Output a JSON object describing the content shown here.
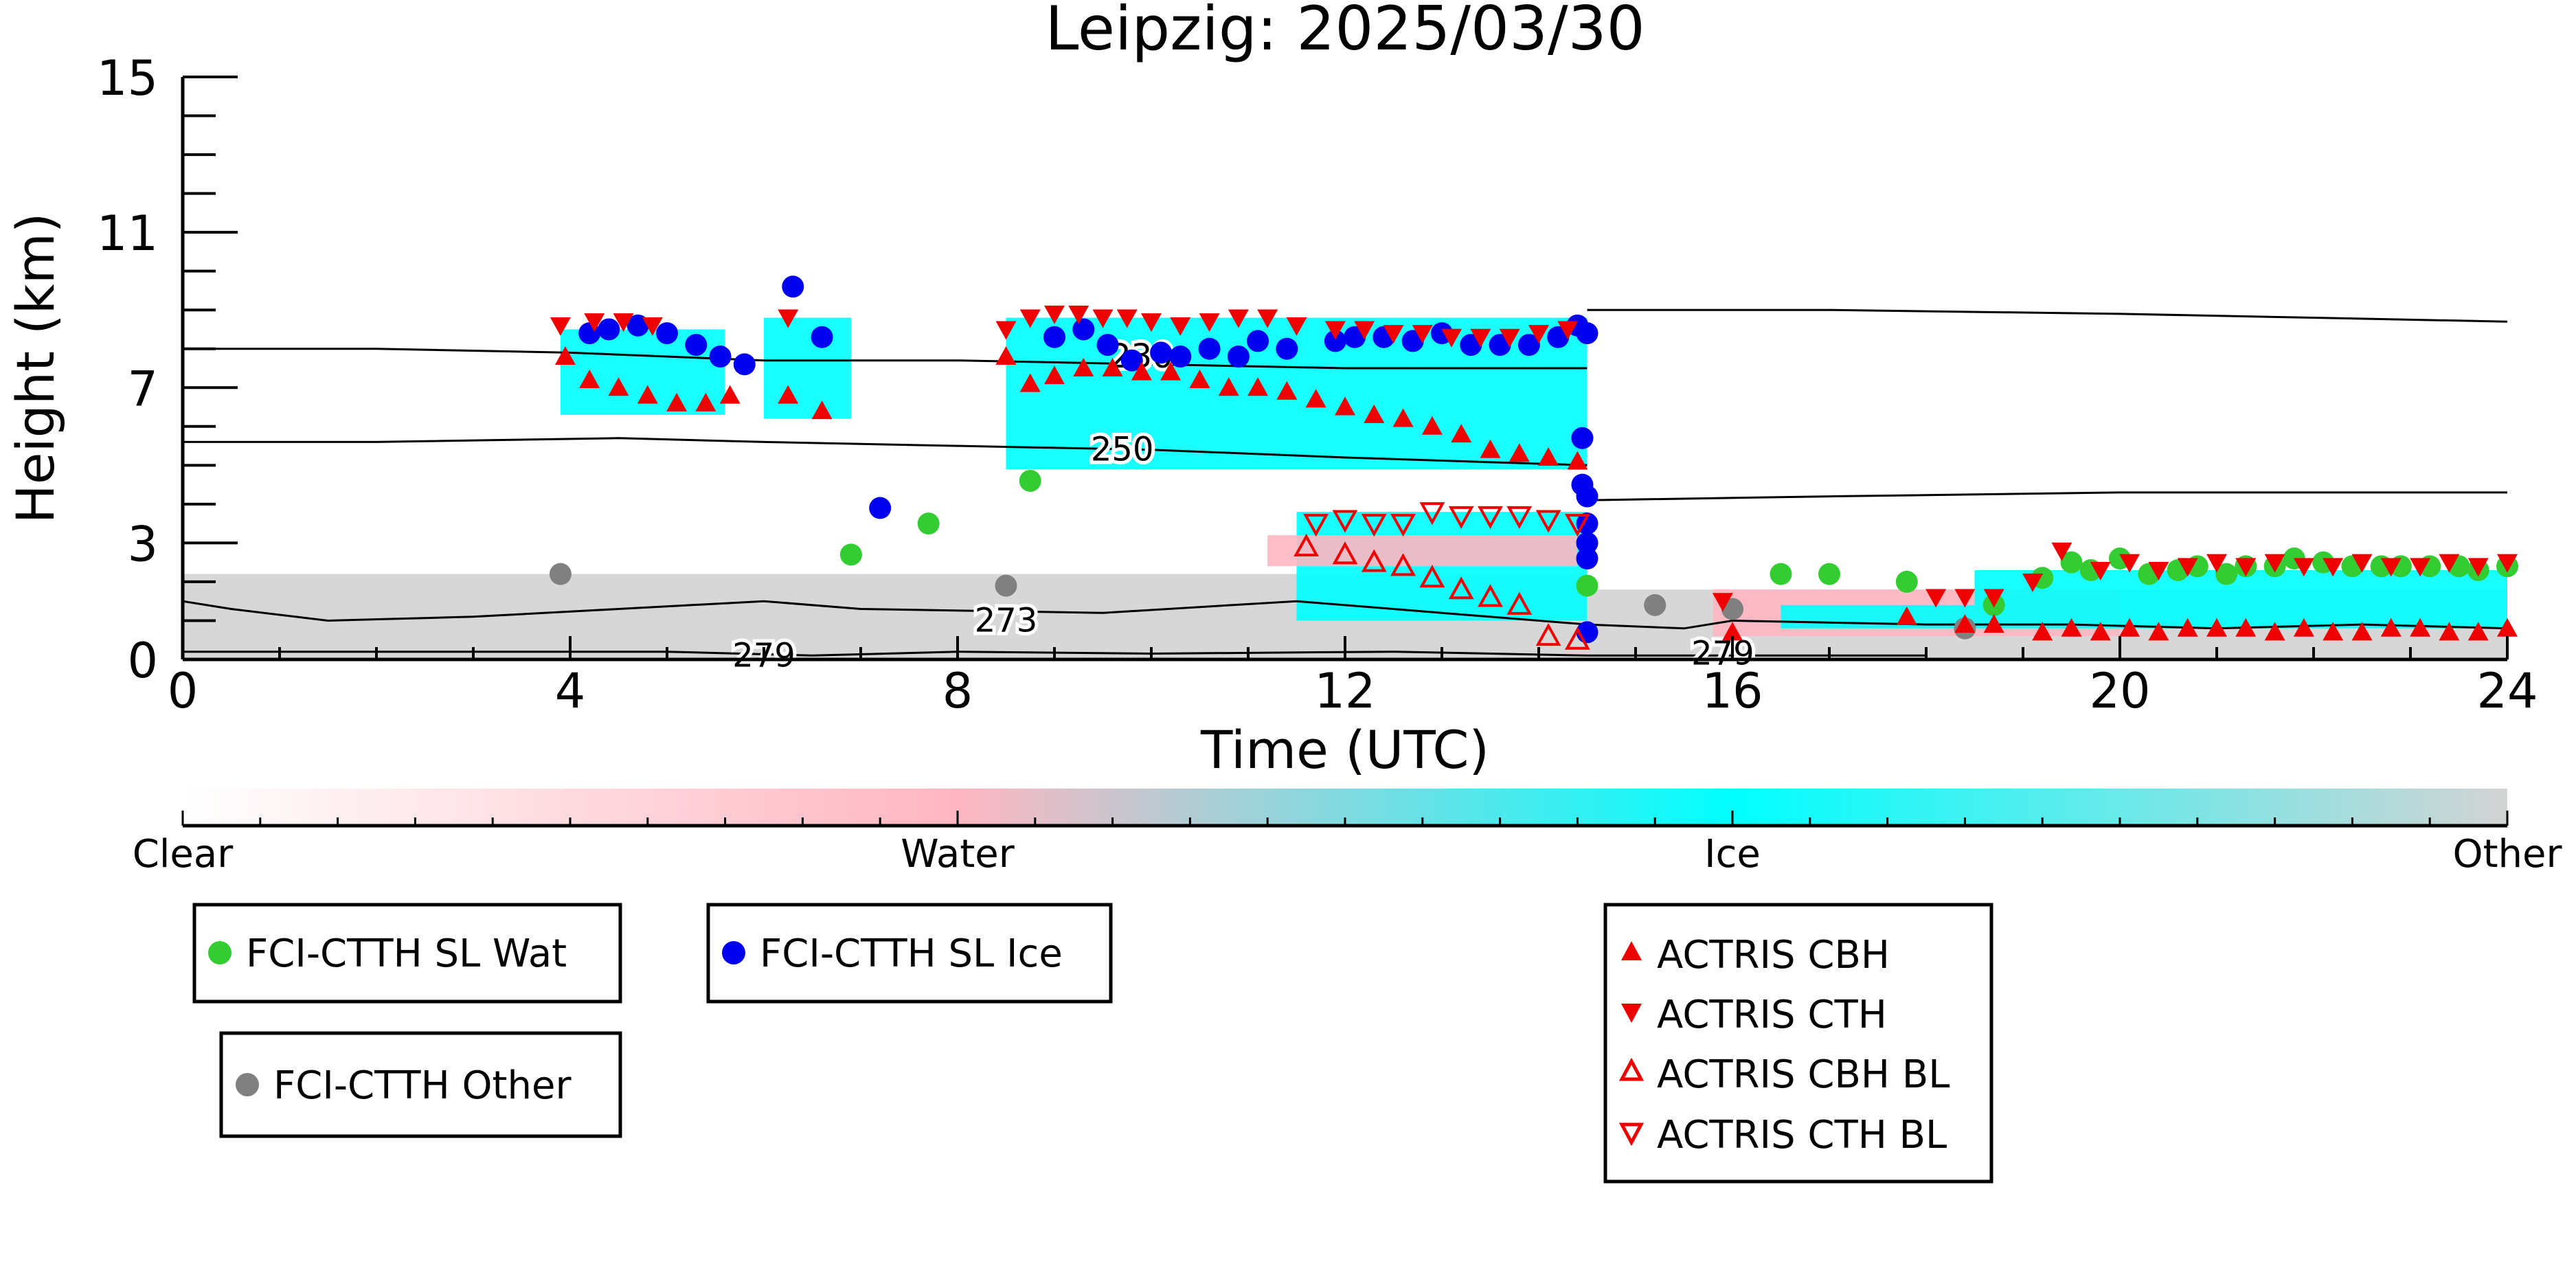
{
  "chart_data": {
    "type": "scatter",
    "title": "Leipzig: 2025/03/30",
    "xlabel": "Time (UTC)",
    "ylabel": "Height (km)",
    "xlim": [
      0,
      24
    ],
    "ylim": [
      0,
      15
    ],
    "x_ticks": [
      0,
      4,
      8,
      12,
      16,
      20,
      24
    ],
    "x_tick_labels": [
      "0",
      "4",
      "8",
      "12",
      "16",
      "20",
      "24"
    ],
    "y_ticks": [
      0,
      3,
      7,
      11,
      15
    ],
    "y_tick_labels": [
      "0",
      "3",
      "7",
      "11",
      "15"
    ],
    "grid": false,
    "colorbar": {
      "labels": [
        "Clear",
        "Water",
        "Ice",
        "Other"
      ],
      "colors": [
        "#ffffff",
        "#ffb6c1",
        "#00ffff",
        "#d3d3d3"
      ]
    },
    "contours": [
      {
        "label": "230",
        "label_at": [
          9.9,
          7.8
        ],
        "points": [
          [
            0,
            8.0
          ],
          [
            2,
            8.0
          ],
          [
            4,
            7.9
          ],
          [
            6,
            7.7
          ],
          [
            8,
            7.7
          ],
          [
            10,
            7.6
          ],
          [
            12,
            7.5
          ],
          [
            14.5,
            7.5
          ]
        ]
      },
      {
        "label": "250",
        "label_at": [
          9.7,
          5.4
        ],
        "points": [
          [
            0,
            5.6
          ],
          [
            2,
            5.6
          ],
          [
            4.5,
            5.7
          ],
          [
            6,
            5.6
          ],
          [
            8,
            5.5
          ],
          [
            10,
            5.4
          ],
          [
            12,
            5.2
          ],
          [
            14.5,
            5.0
          ]
        ]
      },
      {
        "label": "273",
        "label_at": [
          8.5,
          1.0
        ],
        "points": [
          [
            0,
            1.5
          ],
          [
            0.5,
            1.3
          ],
          [
            1.5,
            1.0
          ],
          [
            3,
            1.1
          ],
          [
            4.5,
            1.3
          ],
          [
            6,
            1.5
          ],
          [
            7,
            1.3
          ],
          [
            9.5,
            1.2
          ],
          [
            11.5,
            1.5
          ],
          [
            13,
            1.2
          ],
          [
            14.5,
            0.9
          ]
        ]
      },
      {
        "label": "279",
        "label_at": [
          6.0,
          0.1
        ],
        "points": [
          [
            0,
            0.2
          ],
          [
            3,
            0.2
          ],
          [
            5,
            0.2
          ],
          [
            6.5,
            0.1
          ],
          [
            8,
            0.2
          ],
          [
            10,
            0.15
          ],
          [
            12.5,
            0.2
          ],
          [
            14.5,
            0.1
          ]
        ]
      },
      {
        "label": "",
        "label_at": null,
        "points": [
          [
            14.5,
            9.0
          ],
          [
            17,
            9.0
          ],
          [
            20,
            8.9
          ],
          [
            22,
            8.8
          ],
          [
            24,
            8.7
          ]
        ]
      },
      {
        "label": "",
        "label_at": null,
        "points": [
          [
            14.5,
            4.1
          ],
          [
            17,
            4.2
          ],
          [
            20,
            4.3
          ],
          [
            22,
            4.3
          ],
          [
            24,
            4.3
          ]
        ]
      },
      {
        "label": "",
        "label_at": null,
        "points": [
          [
            14.5,
            0.9
          ],
          [
            15.5,
            0.8
          ],
          [
            16,
            1.0
          ],
          [
            18,
            0.9
          ],
          [
            19.5,
            0.9
          ],
          [
            21,
            0.8
          ],
          [
            22.5,
            0.9
          ],
          [
            24,
            0.8
          ]
        ]
      },
      {
        "label": "279",
        "label_at": [
          15.9,
          0.15
        ],
        "points": [
          [
            14.5,
            0.1
          ],
          [
            18,
            0.1
          ]
        ]
      }
    ],
    "regions": [
      {
        "class": "Other",
        "x0": 0,
        "x1": 14.5,
        "y0": 0,
        "y1": 2.2
      },
      {
        "class": "Ice",
        "x0": 3.9,
        "x1": 5.6,
        "y0": 6.3,
        "y1": 8.5
      },
      {
        "class": "Ice",
        "x0": 6.0,
        "x1": 6.9,
        "y0": 6.2,
        "y1": 8.8
      },
      {
        "class": "Ice",
        "x0": 8.5,
        "x1": 14.5,
        "y0": 4.9,
        "y1": 8.8
      },
      {
        "class": "Ice",
        "x0": 11.5,
        "x1": 14.5,
        "y0": 1.0,
        "y1": 3.8
      },
      {
        "class": "Water",
        "x0": 11.2,
        "x1": 14.4,
        "y0": 2.4,
        "y1": 3.2
      },
      {
        "class": "Other",
        "x0": 14.5,
        "x1": 24,
        "y0": 0,
        "y1": 1.8
      },
      {
        "class": "Water",
        "x0": 15.8,
        "x1": 20.0,
        "y0": 0.6,
        "y1": 1.8
      },
      {
        "class": "Ice",
        "x0": 18.5,
        "x1": 24,
        "y0": 0.8,
        "y1": 2.3
      },
      {
        "class": "Ice",
        "x0": 16.5,
        "x1": 18.5,
        "y0": 0.8,
        "y1": 1.4
      }
    ],
    "series": [
      {
        "name": "FCI-CTTH SL Wat",
        "marker": "circle",
        "color": "#33cc33",
        "x": [
          6.9,
          7.7,
          8.75,
          14.5,
          16.5,
          17.0,
          17.8,
          18.7,
          19.2,
          19.5,
          19.7,
          20.0,
          20.3,
          20.6,
          20.8,
          21.1,
          21.3,
          21.6,
          21.8,
          22.1,
          22.4,
          22.7,
          22.9,
          23.2,
          23.5,
          23.7,
          24.0
        ],
        "y": [
          2.7,
          3.5,
          4.6,
          1.9,
          2.2,
          2.2,
          2.0,
          1.4,
          2.1,
          2.5,
          2.3,
          2.6,
          2.2,
          2.3,
          2.4,
          2.2,
          2.4,
          2.4,
          2.6,
          2.5,
          2.4,
          2.4,
          2.4,
          2.4,
          2.4,
          2.3,
          2.4
        ]
      },
      {
        "name": "FCI-CTTH SL Ice",
        "marker": "circle",
        "color": "#0000ee",
        "x": [
          4.2,
          4.4,
          4.7,
          5.0,
          5.3,
          5.55,
          5.8,
          6.3,
          6.6,
          7.2,
          9.0,
          9.3,
          9.55,
          9.8,
          10.1,
          10.3,
          10.6,
          10.9,
          11.1,
          11.4,
          11.9,
          12.1,
          12.4,
          12.7,
          13.0,
          13.3,
          13.6,
          13.9,
          14.2,
          14.4,
          14.45,
          14.45,
          14.5,
          14.5,
          14.5,
          14.5
        ],
        "y": [
          8.4,
          8.5,
          8.6,
          8.4,
          8.1,
          7.8,
          7.6,
          9.6,
          8.3,
          3.9,
          8.3,
          8.5,
          8.1,
          7.7,
          7.9,
          7.8,
          8.0,
          7.8,
          8.2,
          8.0,
          8.2,
          8.3,
          8.3,
          8.2,
          8.4,
          8.1,
          8.1,
          8.1,
          8.3,
          8.6,
          5.7,
          4.5,
          3.5,
          3.0,
          2.6,
          0.7
        ],
        "x_extra": [
          14.5,
          14.5
        ],
        "y_extra": [
          4.2,
          8.4
        ]
      },
      {
        "name": "FCI-CTTH Other",
        "marker": "circle",
        "color": "#808080",
        "x": [
          3.9,
          8.5,
          15.2,
          16.0,
          18.4
        ],
        "y": [
          2.2,
          1.9,
          1.4,
          1.3,
          0.8
        ]
      },
      {
        "name": "ACTRIS CBH",
        "marker": "triangle-up",
        "color": "#ee0000",
        "filled": true,
        "x": [
          3.95,
          4.2,
          4.5,
          4.8,
          5.1,
          5.4,
          5.65,
          6.25,
          6.6,
          8.5,
          8.75,
          9.0,
          9.3,
          9.6,
          9.9,
          10.2,
          10.5,
          10.8,
          11.1,
          11.4,
          11.7,
          12.0,
          12.3,
          12.6,
          12.9,
          13.2,
          13.5,
          13.8,
          14.1,
          14.4,
          16.0,
          17.8,
          18.4,
          18.7,
          19.2,
          19.5,
          19.8,
          20.1,
          20.4,
          20.7,
          21.0,
          21.3,
          21.6,
          21.9,
          22.2,
          22.5,
          22.8,
          23.1,
          23.4,
          23.7,
          24.0
        ],
        "y": [
          7.8,
          7.2,
          7.0,
          6.8,
          6.6,
          6.6,
          6.8,
          6.8,
          6.4,
          7.8,
          7.1,
          7.3,
          7.5,
          7.5,
          7.4,
          7.4,
          7.2,
          7.0,
          7.0,
          6.9,
          6.7,
          6.5,
          6.3,
          6.2,
          6.0,
          5.8,
          5.4,
          5.3,
          5.2,
          5.1,
          0.7,
          1.1,
          0.9,
          0.9,
          0.7,
          0.8,
          0.7,
          0.8,
          0.7,
          0.8,
          0.8,
          0.8,
          0.7,
          0.8,
          0.7,
          0.7,
          0.8,
          0.8,
          0.7,
          0.7,
          0.8
        ]
      },
      {
        "name": "ACTRIS CTH",
        "marker": "triangle-down",
        "color": "#ee0000",
        "filled": true,
        "x": [
          3.9,
          4.25,
          4.55,
          4.85,
          6.25,
          8.5,
          8.75,
          9.0,
          9.25,
          9.5,
          9.75,
          10.0,
          10.3,
          10.6,
          10.9,
          11.2,
          11.5,
          11.9,
          12.2,
          12.5,
          12.8,
          13.1,
          13.4,
          13.7,
          14.0,
          14.3,
          15.9,
          18.1,
          18.4,
          18.7,
          19.1,
          19.4,
          19.8,
          20.1,
          20.4,
          20.7,
          21.0,
          21.3,
          21.6,
          21.9,
          22.2,
          22.5,
          22.8,
          23.1,
          23.4,
          23.7,
          24.0
        ],
        "y": [
          8.6,
          8.7,
          8.7,
          8.6,
          8.8,
          8.5,
          8.8,
          8.9,
          8.9,
          8.8,
          8.8,
          8.7,
          8.6,
          8.7,
          8.8,
          8.8,
          8.6,
          8.5,
          8.5,
          8.4,
          8.4,
          8.3,
          8.3,
          8.3,
          8.4,
          8.5,
          1.5,
          1.6,
          1.6,
          1.6,
          2.0,
          2.8,
          2.3,
          2.5,
          2.3,
          2.4,
          2.5,
          2.4,
          2.5,
          2.4,
          2.4,
          2.5,
          2.4,
          2.4,
          2.5,
          2.4,
          2.5
        ]
      },
      {
        "name": "ACTRIS CBH BL",
        "marker": "triangle-up",
        "color": "#ee0000",
        "filled": false,
        "x": [
          11.6,
          12.0,
          12.3,
          12.6,
          12.9,
          13.2,
          13.5,
          13.8,
          14.1,
          14.4
        ],
        "y": [
          2.9,
          2.7,
          2.5,
          2.4,
          2.1,
          1.8,
          1.6,
          1.4,
          0.6,
          0.5
        ]
      },
      {
        "name": "ACTRIS CTH BL",
        "marker": "triangle-down",
        "color": "#ee0000",
        "filled": false,
        "x": [
          11.7,
          12.0,
          12.3,
          12.6,
          12.9,
          13.2,
          13.5,
          13.8,
          14.1,
          14.4
        ],
        "y": [
          3.5,
          3.6,
          3.5,
          3.5,
          3.8,
          3.7,
          3.7,
          3.7,
          3.6,
          3.5
        ]
      }
    ],
    "legend_boxes": [
      {
        "items": [
          "FCI-CTTH SL Wat"
        ]
      },
      {
        "items": [
          "FCI-CTTH SL Ice"
        ]
      },
      {
        "items": [
          "FCI-CTTH Other"
        ]
      },
      {
        "items": [
          "ACTRIS CBH",
          "ACTRIS CTH",
          "ACTRIS CBH BL",
          "ACTRIS CTH BL"
        ]
      }
    ]
  }
}
